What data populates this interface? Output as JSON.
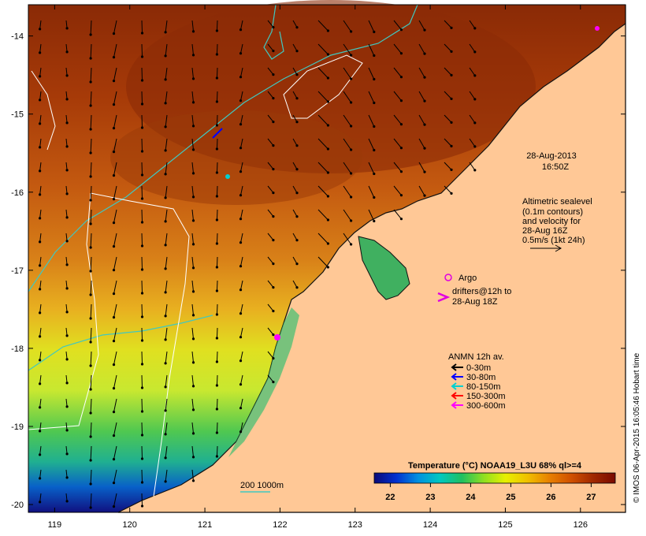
{
  "map": {
    "longitude_ticks": [
      "119",
      "120",
      "121",
      "122",
      "123",
      "124",
      "125",
      "126"
    ],
    "latitude_ticks": [
      "-14",
      "-15",
      "-16",
      "-17",
      "-18",
      "-19",
      "-20"
    ],
    "lon_range": [
      118.65,
      126.6
    ],
    "lat_range": [
      -13.6,
      -20.1
    ]
  },
  "timestamp": {
    "date": "28-Aug-2013",
    "time": "16:50Z"
  },
  "altimetry": {
    "lines": [
      "Altimetric sealevel",
      "(0.1m contours)",
      "and velocity for",
      "28-Aug 16Z",
      "0.5m/s (1kt 24h)"
    ]
  },
  "argo": {
    "label": "Argo",
    "color": "#e000e0"
  },
  "drifters": {
    "lines": [
      "drifters@12h to",
      "28-Aug 18Z"
    ],
    "color": "#e000e0"
  },
  "anmn": {
    "title": "ANMN 12h av.",
    "items": [
      {
        "label": "0-30m",
        "color": "#000000"
      },
      {
        "label": "30-80m",
        "color": "#0000ff"
      },
      {
        "label": "80-150m",
        "color": "#00d0d0"
      },
      {
        "label": "150-300m",
        "color": "#ff0000"
      },
      {
        "label": "300-600m",
        "color": "#ff00ff"
      }
    ]
  },
  "bathymetry": {
    "label": "200  1000m",
    "color": "#40c8c0"
  },
  "colorbar": {
    "title": "Temperature (°C) NOAA19_L3U 68% ql>=4",
    "ticks": [
      "22",
      "23",
      "24",
      "25",
      "26",
      "27"
    ],
    "range": [
      21.6,
      27.6
    ],
    "colors": [
      "#0a0a78",
      "#0030d0",
      "#0090e0",
      "#00c8c0",
      "#20c060",
      "#90e020",
      "#e8f000",
      "#f0c000",
      "#e88000",
      "#d05000",
      "#a02800",
      "#7a0a00"
    ]
  },
  "credit": "© IMOS 06-Apr-2015 16:05:46 Hobart time"
}
